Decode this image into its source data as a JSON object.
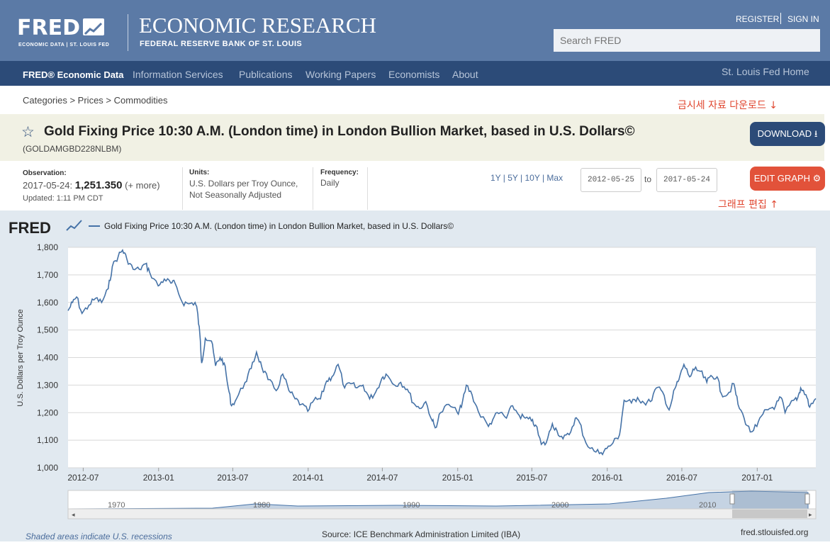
{
  "header": {
    "logo": "FRED",
    "logo_sub": "ECONOMIC DATA  |  ST. LOUIS FED",
    "title": "ECONOMIC RESEARCH",
    "subtitle": "FEDERAL RESERVE BANK OF ST. LOUIS",
    "register": "REGISTER",
    "signin": "SIGN IN",
    "search_placeholder": "Search FRED"
  },
  "nav": {
    "items": [
      {
        "label": "FRED® Economic Data"
      },
      {
        "label": "Information Services"
      },
      {
        "label": "Publications"
      },
      {
        "label": "Working Papers"
      },
      {
        "label": "Economists"
      },
      {
        "label": "About"
      }
    ],
    "right": "St. Louis Fed Home"
  },
  "breadcrumb": "Categories > Prices > Commodities",
  "annotations": {
    "download_note": "금시세 자료 다운로드 ↓",
    "edit_note": "그래프 편집 ↑"
  },
  "series": {
    "title": "Gold Fixing Price 10:30 A.M. (London time) in London Bullion Market, based in U.S. Dollars©",
    "id": "(GOLDAMGBD228NLBM)",
    "download_label": "DOWNLOAD"
  },
  "observation": {
    "label": "Observation:",
    "date": "2017-05-24:",
    "value": "1,251.350",
    "more": "(+ more)",
    "updated": "Updated: 1:11 PM CDT"
  },
  "units": {
    "label": "Units:",
    "line1": "U.S. Dollars per Troy Ounce,",
    "line2": "Not Seasonally Adjusted"
  },
  "frequency": {
    "label": "Frequency:",
    "value": "Daily"
  },
  "ranges": "1Y | 5Y | 10Y | Max",
  "date_from": "2012-05-25",
  "date_to": "2017-05-24",
  "to_label": "to",
  "edit_label": "EDIT GRAPH",
  "chart_footer": {
    "recessions": "Shaded areas indicate U.S. recessions",
    "source": "Source: ICE Benchmark Administration Limited (IBA)",
    "site": "fred.stlouisfed.org"
  },
  "navigator_labels": [
    "1970",
    "1980",
    "1990",
    "2000",
    "2010"
  ],
  "colors": {
    "line": "#4572a7",
    "header": "#5b7aa6",
    "nav": "#2c4b78",
    "edit": "#e2523a"
  },
  "chart_data": {
    "type": "line",
    "title": "Gold Fixing Price 10:30 A.M. (London time) in London Bullion Market, based in U.S. Dollars©",
    "ylabel": "U.S. Dollars per Troy Ounce",
    "xlabel": "",
    "ylim": [
      1000,
      1800
    ],
    "yticks": [
      1000,
      1100,
      1200,
      1300,
      1400,
      1500,
      1600,
      1700,
      1800
    ],
    "ytick_labels": [
      "1,000",
      "1,100",
      "1,200",
      "1,300",
      "1,400",
      "1,500",
      "1,600",
      "1,700",
      "1,800"
    ],
    "xlim": [
      "2012-05-25",
      "2017-05-24"
    ],
    "xtick_labels": [
      "2012-07",
      "2013-01",
      "2013-07",
      "2014-01",
      "2014-07",
      "2015-01",
      "2015-07",
      "2016-01",
      "2016-07",
      "2017-01"
    ],
    "xtick_dates": [
      "2012-07-01",
      "2013-01-01",
      "2013-07-01",
      "2014-01-01",
      "2014-07-01",
      "2015-01-01",
      "2015-07-01",
      "2016-01-01",
      "2016-07-01",
      "2017-01-01"
    ],
    "grid": true,
    "legend": "top-left",
    "series": [
      {
        "name": "Gold Fixing Price 10:30 A.M. (London time) in London Bullion Market, based in U.S. Dollars©",
        "points": [
          [
            "2012-05-25",
            1570
          ],
          [
            "2012-06-05",
            1600
          ],
          [
            "2012-06-15",
            1620
          ],
          [
            "2012-06-28",
            1560
          ],
          [
            "2012-07-15",
            1590
          ],
          [
            "2012-07-31",
            1615
          ],
          [
            "2012-08-15",
            1600
          ],
          [
            "2012-08-31",
            1650
          ],
          [
            "2012-09-10",
            1730
          ],
          [
            "2012-09-25",
            1770
          ],
          [
            "2012-10-05",
            1790
          ],
          [
            "2012-10-15",
            1760
          ],
          [
            "2012-10-31",
            1720
          ],
          [
            "2012-11-15",
            1720
          ],
          [
            "2012-11-30",
            1740
          ],
          [
            "2012-12-10",
            1710
          ],
          [
            "2012-12-31",
            1660
          ],
          [
            "2013-01-15",
            1685
          ],
          [
            "2013-01-31",
            1670
          ],
          [
            "2013-02-10",
            1670
          ],
          [
            "2013-02-28",
            1600
          ],
          [
            "2013-03-15",
            1595
          ],
          [
            "2013-03-31",
            1600
          ],
          [
            "2013-04-05",
            1575
          ],
          [
            "2013-04-12",
            1480
          ],
          [
            "2013-04-16",
            1380
          ],
          [
            "2013-04-25",
            1470
          ],
          [
            "2013-05-10",
            1460
          ],
          [
            "2013-05-20",
            1370
          ],
          [
            "2013-05-31",
            1400
          ],
          [
            "2013-06-10",
            1380
          ],
          [
            "2013-06-20",
            1290
          ],
          [
            "2013-06-28",
            1225
          ],
          [
            "2013-07-10",
            1250
          ],
          [
            "2013-07-31",
            1310
          ],
          [
            "2013-08-15",
            1360
          ],
          [
            "2013-08-28",
            1420
          ],
          [
            "2013-09-10",
            1365
          ],
          [
            "2013-09-25",
            1320
          ],
          [
            "2013-10-15",
            1280
          ],
          [
            "2013-10-31",
            1340
          ],
          [
            "2013-11-15",
            1280
          ],
          [
            "2013-11-30",
            1250
          ],
          [
            "2013-12-15",
            1230
          ],
          [
            "2013-12-31",
            1205
          ],
          [
            "2014-01-15",
            1245
          ],
          [
            "2014-01-31",
            1250
          ],
          [
            "2014-02-15",
            1315
          ],
          [
            "2014-02-28",
            1330
          ],
          [
            "2014-03-15",
            1375
          ],
          [
            "2014-03-31",
            1290
          ],
          [
            "2014-04-15",
            1305
          ],
          [
            "2014-04-30",
            1290
          ],
          [
            "2014-05-15",
            1300
          ],
          [
            "2014-05-31",
            1250
          ],
          [
            "2014-06-15",
            1275
          ],
          [
            "2014-06-30",
            1325
          ],
          [
            "2014-07-10",
            1340
          ],
          [
            "2014-07-31",
            1300
          ],
          [
            "2014-08-15",
            1310
          ],
          [
            "2014-08-31",
            1285
          ],
          [
            "2014-09-15",
            1235
          ],
          [
            "2014-09-30",
            1215
          ],
          [
            "2014-10-15",
            1240
          ],
          [
            "2014-10-31",
            1170
          ],
          [
            "2014-11-07",
            1145
          ],
          [
            "2014-11-20",
            1200
          ],
          [
            "2014-12-10",
            1230
          ],
          [
            "2014-12-31",
            1200
          ],
          [
            "2015-01-10",
            1220
          ],
          [
            "2015-01-22",
            1300
          ],
          [
            "2015-02-05",
            1265
          ],
          [
            "2015-02-20",
            1205
          ],
          [
            "2015-03-17",
            1150
          ],
          [
            "2015-03-31",
            1185
          ],
          [
            "2015-04-15",
            1200
          ],
          [
            "2015-04-30",
            1180
          ],
          [
            "2015-05-15",
            1225
          ],
          [
            "2015-05-31",
            1190
          ],
          [
            "2015-06-15",
            1180
          ],
          [
            "2015-06-30",
            1170
          ],
          [
            "2015-07-10",
            1155
          ],
          [
            "2015-07-24",
            1085
          ],
          [
            "2015-08-05",
            1090
          ],
          [
            "2015-08-20",
            1160
          ],
          [
            "2015-08-31",
            1135
          ],
          [
            "2015-09-15",
            1105
          ],
          [
            "2015-09-30",
            1120
          ],
          [
            "2015-10-15",
            1180
          ],
          [
            "2015-10-25",
            1165
          ],
          [
            "2015-11-10",
            1090
          ],
          [
            "2015-11-30",
            1060
          ],
          [
            "2015-12-17",
            1055
          ],
          [
            "2015-12-31",
            1070
          ],
          [
            "2016-01-15",
            1090
          ],
          [
            "2016-01-31",
            1120
          ],
          [
            "2016-02-11",
            1245
          ],
          [
            "2016-02-29",
            1235
          ],
          [
            "2016-03-15",
            1255
          ],
          [
            "2016-03-31",
            1235
          ],
          [
            "2016-04-15",
            1240
          ],
          [
            "2016-04-30",
            1290
          ],
          [
            "2016-05-15",
            1275
          ],
          [
            "2016-05-31",
            1210
          ],
          [
            "2016-06-15",
            1290
          ],
          [
            "2016-06-24",
            1320
          ],
          [
            "2016-07-06",
            1375
          ],
          [
            "2016-07-20",
            1330
          ],
          [
            "2016-07-31",
            1355
          ],
          [
            "2016-08-15",
            1350
          ],
          [
            "2016-08-31",
            1310
          ],
          [
            "2016-09-10",
            1335
          ],
          [
            "2016-09-25",
            1330
          ],
          [
            "2016-10-05",
            1270
          ],
          [
            "2016-10-20",
            1265
          ],
          [
            "2016-11-05",
            1305
          ],
          [
            "2016-11-15",
            1230
          ],
          [
            "2016-11-30",
            1180
          ],
          [
            "2016-12-15",
            1130
          ],
          [
            "2016-12-31",
            1150
          ],
          [
            "2017-01-15",
            1195
          ],
          [
            "2017-01-31",
            1215
          ],
          [
            "2017-02-15",
            1225
          ],
          [
            "2017-02-28",
            1255
          ],
          [
            "2017-03-10",
            1200
          ],
          [
            "2017-03-31",
            1245
          ],
          [
            "2017-04-10",
            1255
          ],
          [
            "2017-04-17",
            1290
          ],
          [
            "2017-04-30",
            1265
          ],
          [
            "2017-05-09",
            1220
          ],
          [
            "2017-05-24",
            1251.35
          ]
        ]
      }
    ]
  }
}
